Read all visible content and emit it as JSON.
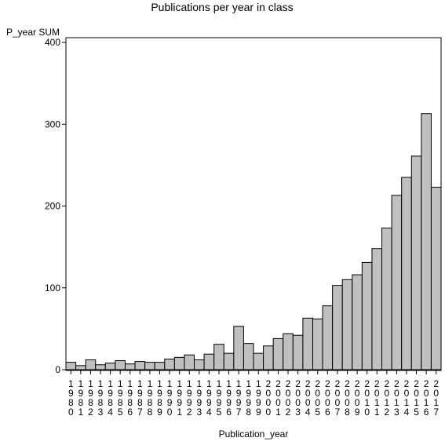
{
  "chart_data": {
    "type": "bar",
    "title": "Publications per year in class",
    "xlabel": "Publication_year",
    "ylabel": "P_year SUM",
    "ylim": [
      0,
      400
    ],
    "yticks": [
      "0",
      "100",
      "200",
      "300",
      "400"
    ],
    "categories": [
      "1980",
      "1981",
      "1982",
      "1983",
      "1984",
      "1985",
      "1986",
      "1987",
      "1988",
      "1989",
      "1990",
      "1991",
      "1992",
      "1993",
      "1994",
      "1995",
      "1996",
      "1997",
      "1998",
      "1999",
      "2000",
      "2001",
      "2002",
      "2003",
      "2004",
      "2005",
      "2006",
      "2007",
      "2008",
      "2009",
      "2010",
      "2011",
      "2012",
      "2013",
      "2014",
      "2015",
      "2016",
      "2017"
    ],
    "values": [
      9,
      5,
      12,
      6,
      8,
      11,
      7,
      10,
      9,
      9,
      13,
      15,
      18,
      12,
      19,
      31,
      20,
      53,
      32,
      20,
      29,
      38,
      44,
      42,
      63,
      62,
      78,
      103,
      110,
      116,
      131,
      148,
      173,
      213,
      235,
      261,
      313,
      223
    ],
    "bar_color": "#c0c0c0",
    "grid": false
  }
}
